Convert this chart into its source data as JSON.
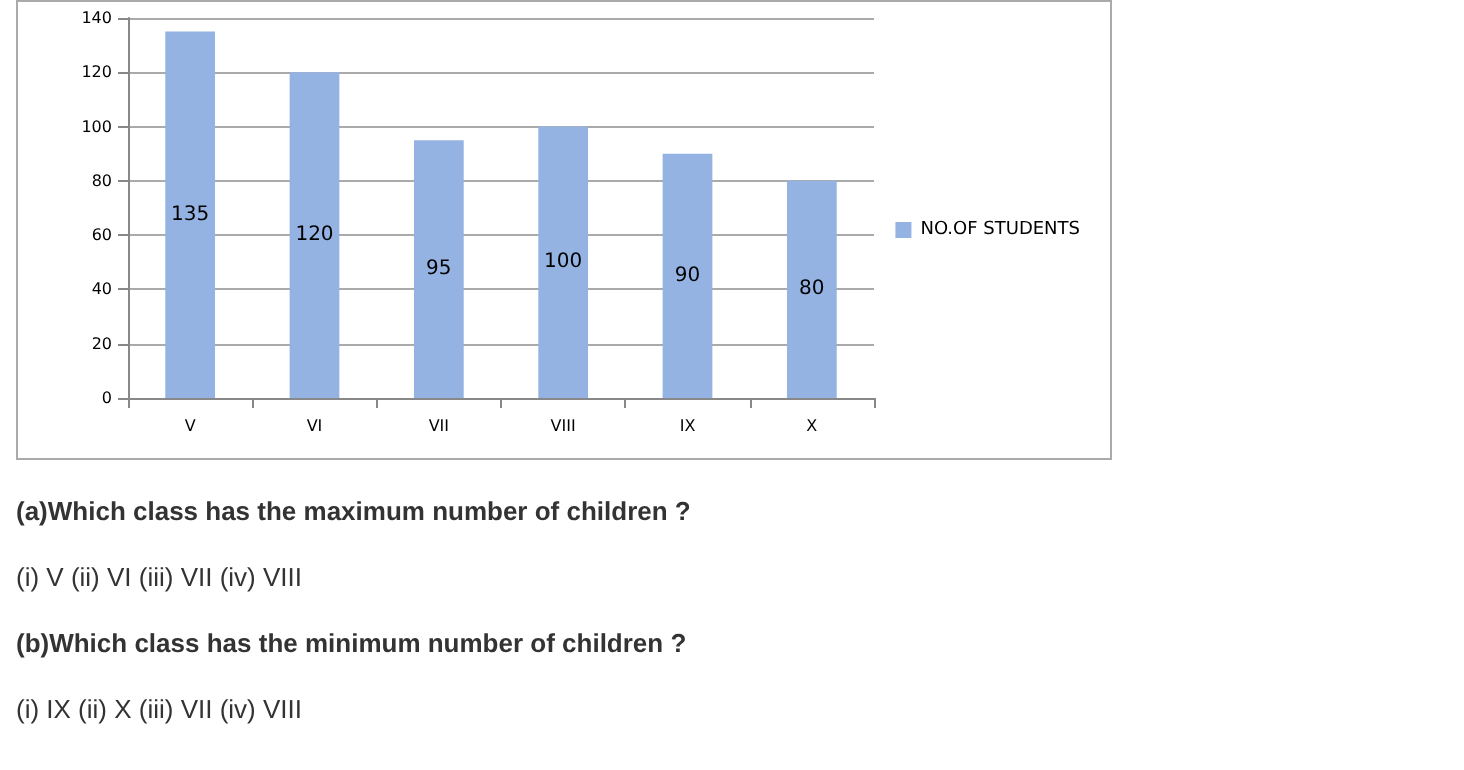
{
  "chart_data": {
    "type": "bar",
    "categories": [
      "V",
      "VI",
      "VII",
      "VIII",
      "IX",
      "X"
    ],
    "series": [
      {
        "name": "NO.OF STUDENTS",
        "color": "#95b3e2",
        "values": [
          135,
          120,
          95,
          100,
          90,
          80
        ]
      }
    ],
    "ylim": [
      0,
      140
    ],
    "yticks": [
      0,
      20,
      40,
      60,
      80,
      100,
      120,
      140
    ],
    "grid": "y",
    "legend": "right",
    "data_labels": true,
    "annotations": [
      "(a)Which class has the maximum number of children ?",
      "(i) V (ii) VI (iii) VII (iv) VIII",
      "(b)Which class has the minimum number of children ?",
      "(i) IX (ii) X (iii) VII (iv) VIII"
    ]
  }
}
